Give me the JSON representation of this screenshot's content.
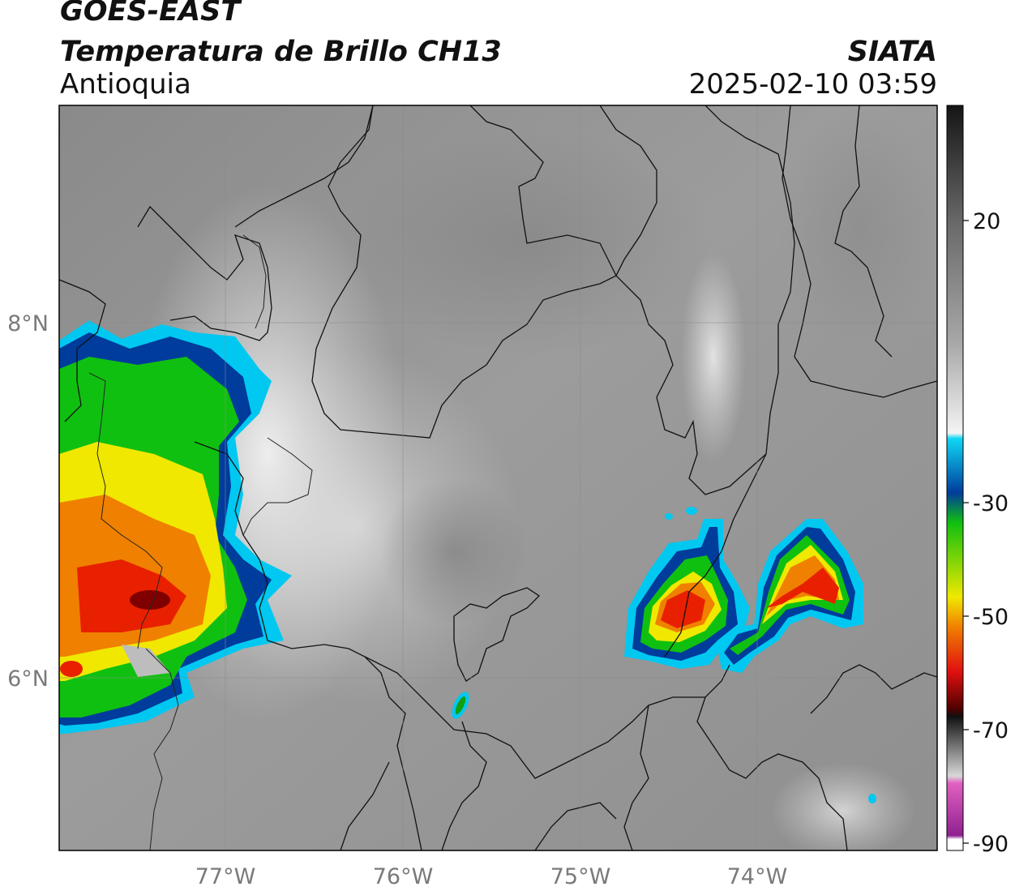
{
  "header": {
    "satellite": "GOES-EAST",
    "product": "Temperatura de Brillo CH13",
    "region": "Antioquia",
    "agency": "SIATA",
    "datetime": "2025-02-10 03:59"
  },
  "map": {
    "lat_labels": [
      "8°N",
      "6°N"
    ],
    "lon_labels": [
      "77°W",
      "76°W",
      "75°W",
      "74°W"
    ],
    "colors": {
      "frame": "#000000",
      "border": "#111111",
      "gridline": "#8a8a8a",
      "cloud_edge": "#00c8f0",
      "cloud_mid": "#00b400",
      "cloud_core": "#e82000"
    }
  },
  "colorbar": {
    "labels": [
      "20",
      "-30",
      "-50",
      "-70",
      "-90"
    ],
    "colors": {
      "warm_top": "#151515",
      "gray_mid": "#9a9a9a",
      "light": "#f4f4f4",
      "cyan": "#10d8f4",
      "blue": "#003c9c",
      "green": "#10c010",
      "yellow": "#f0e800",
      "orange": "#f08000",
      "red": "#e01010",
      "dark_red": "#500000",
      "pink": "#e060c0",
      "purple": "#902090"
    }
  }
}
